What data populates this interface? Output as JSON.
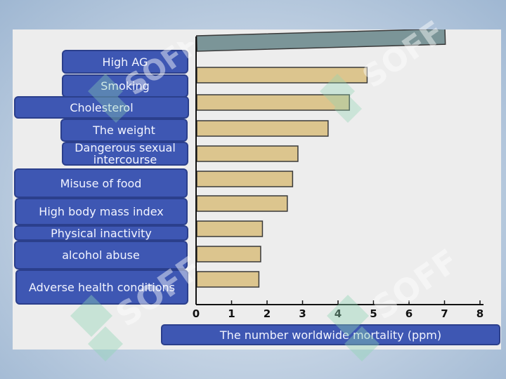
{
  "chart_data": {
    "type": "bar",
    "orientation": "horizontal",
    "categories": [
      "High AG",
      "Smoking",
      "Cholesterol",
      "The weight",
      "Dangerous sexual intercourse",
      "Misuse of food",
      "High body mass index",
      "Physical inactivity",
      "alcohol abuse",
      "Adverse health conditions"
    ],
    "values": [
      7.0,
      4.8,
      4.3,
      3.7,
      2.85,
      2.7,
      2.55,
      1.85,
      1.8,
      1.75
    ],
    "xlabel": "The number worldwide mortality (ppm)",
    "xlim": [
      0,
      8
    ],
    "xticks": [
      "0",
      "1",
      "2",
      "3",
      "4",
      "5",
      "6",
      "7",
      "8"
    ],
    "grid": false,
    "legend": "none"
  },
  "colors": {
    "first_bar": "#7b9598",
    "bars": "#dcc58e",
    "label_box": "#3e57b3"
  },
  "watermark": "SOFF"
}
